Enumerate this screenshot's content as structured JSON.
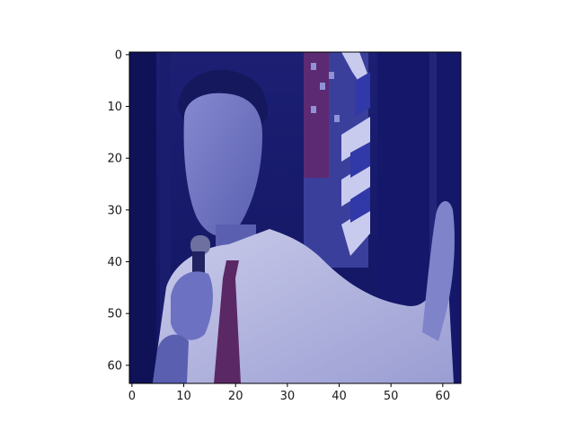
{
  "figure": {
    "type": "image-plot",
    "description_colors": {
      "background": "#ffffff",
      "image_tint": "#2a2f8c",
      "axis_color": "#000000"
    }
  },
  "chart_data": {
    "type": "heatmap",
    "title": "",
    "xlabel": "",
    "ylabel": "",
    "xlim": [
      -0.5,
      63.5
    ],
    "ylim": [
      63.5,
      -0.5
    ],
    "image_size": [
      64,
      64
    ],
    "x_ticks": [
      {
        "value": 0,
        "label": "0"
      },
      {
        "value": 10,
        "label": "10"
      },
      {
        "value": 20,
        "label": "20"
      },
      {
        "value": 30,
        "label": "30"
      },
      {
        "value": 40,
        "label": "40"
      },
      {
        "value": 50,
        "label": "50"
      },
      {
        "value": 60,
        "label": "60"
      }
    ],
    "y_ticks": [
      {
        "value": 0,
        "label": "0"
      },
      {
        "value": 10,
        "label": "10"
      },
      {
        "value": 20,
        "label": "20"
      },
      {
        "value": 30,
        "label": "30"
      },
      {
        "value": 40,
        "label": "40"
      },
      {
        "value": 50,
        "label": "50"
      },
      {
        "value": 60,
        "label": "60"
      }
    ]
  }
}
